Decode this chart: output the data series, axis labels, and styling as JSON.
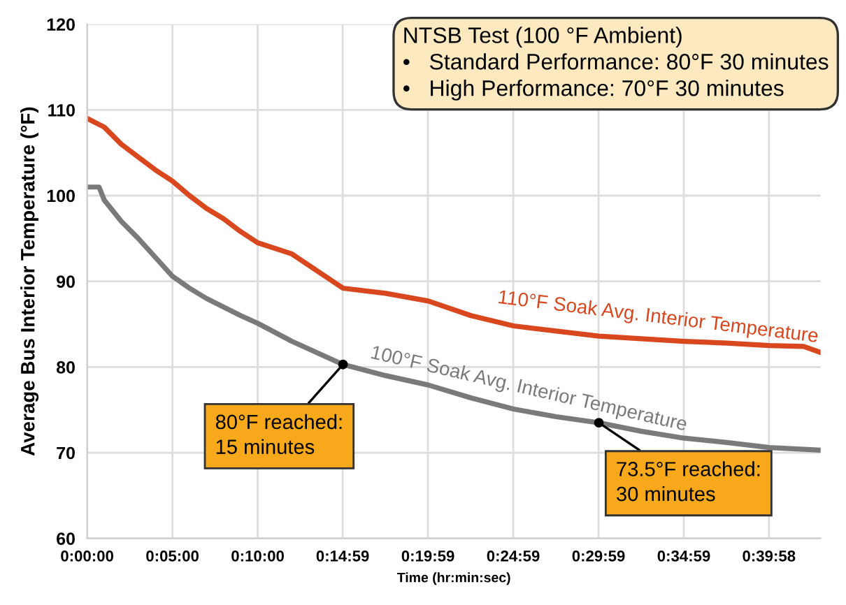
{
  "chart_data": {
    "type": "line",
    "xlabel": "Time (hr:min:sec)",
    "ylabel": "Average Bus Interior Temperature (°F)",
    "series": [
      {
        "name": "110°F Soak Avg. Interior Temperature",
        "color": "#d9471f",
        "x": [
          0,
          1,
          2,
          3,
          4,
          5,
          6,
          7,
          8,
          9,
          10,
          12,
          15,
          17.5,
          20,
          22.5,
          25,
          27.5,
          30,
          32.5,
          35,
          37.5,
          40,
          42,
          43
        ],
        "values": [
          109,
          108,
          106,
          104.5,
          103,
          101.7,
          100,
          98.5,
          97.3,
          95.8,
          94.5,
          93.2,
          89.2,
          88.6,
          87.7,
          86,
          84.8,
          84.2,
          83.6,
          83.3,
          83,
          82.8,
          82.5,
          82.4,
          81.7
        ]
      },
      {
        "name": "100°F Soak Avg. Interior Temperature",
        "color": "#7a7a7a",
        "x": [
          0,
          0.7,
          1,
          2,
          3,
          4,
          5,
          6,
          7,
          8,
          9,
          10,
          12,
          15,
          17.5,
          20,
          22.5,
          25,
          27.5,
          30,
          32.5,
          35,
          37.5,
          40,
          43
        ],
        "values": [
          101,
          101,
          99.5,
          97,
          95,
          92.8,
          90.6,
          89.2,
          88,
          87,
          86,
          85.1,
          83,
          80.3,
          79,
          77.9,
          76.4,
          75.1,
          74.2,
          73.5,
          72.5,
          71.7,
          71.2,
          70.6,
          70.3
        ]
      }
    ],
    "xlim": [
      0,
      43
    ],
    "xticks": [
      {
        "value": 0,
        "label": "0:00:00"
      },
      {
        "value": 5,
        "label": "0:05:00"
      },
      {
        "value": 10,
        "label": "0:10:00"
      },
      {
        "value": 14.98,
        "label": "0:14:59"
      },
      {
        "value": 19.98,
        "label": "0:19:59"
      },
      {
        "value": 24.98,
        "label": "0:24:59"
      },
      {
        "value": 29.98,
        "label": "0:29:59"
      },
      {
        "value": 34.98,
        "label": "0:34:59"
      },
      {
        "value": 39.97,
        "label": "0:39:58"
      }
    ],
    "ylim": [
      60,
      120
    ],
    "yticks": [
      60,
      70,
      80,
      90,
      100,
      110,
      120
    ],
    "grid": true,
    "marker": "none",
    "line_style": "solid",
    "annotations": [
      "NTSB Test (100 °F Ambient)\n•   Standard Performance: 80°F 30 minutes\n•   High Performance: 70°F 30 minutes",
      {
        "text": "80°F reached:\n15 minutes",
        "x": 15,
        "y": 80.3
      },
      {
        "text": "73.5°F reached:\n30 minutes",
        "x": 30,
        "y": 73.5
      }
    ]
  }
}
